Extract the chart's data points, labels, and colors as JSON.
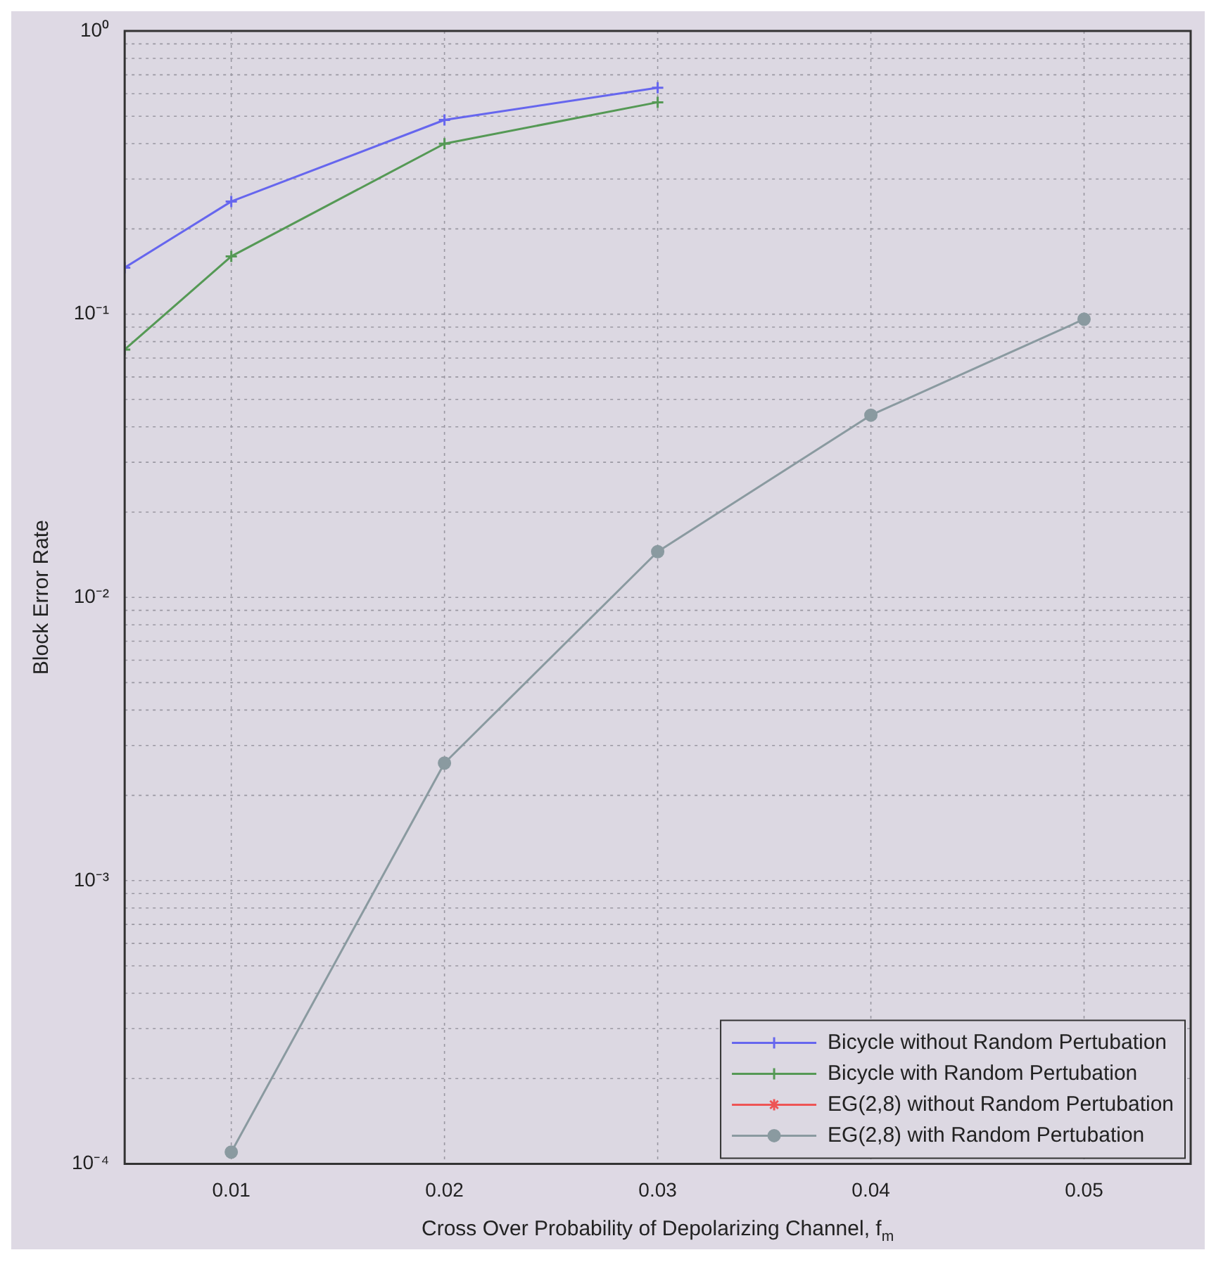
{
  "chart_data": {
    "type": "line",
    "xlabel": "Cross Over Probability of Depolarizing Channel, f$_{m}$",
    "ylabel": "Block Error Rate",
    "xlim": [
      0.005,
      0.055
    ],
    "xticks": [
      0.01,
      0.02,
      0.03,
      0.04,
      0.05
    ],
    "ylim": [
      0.0001,
      1
    ],
    "yticks": [
      {
        "value": 0.0001,
        "label": "10⁻⁴"
      },
      {
        "value": 0.001,
        "label": "10⁻³"
      },
      {
        "value": 0.01,
        "label": "10⁻²"
      },
      {
        "value": 0.1,
        "label": "10⁻¹"
      },
      {
        "value": 1,
        "label": "10⁰"
      }
    ],
    "log": "y",
    "grid": true,
    "legend": "bottom right",
    "line_style": "solid",
    "series": [
      {
        "name": "Bicycle without Random Pertubation",
        "color": "#6666ee",
        "marker": "cross",
        "x": [
          0.005,
          0.01,
          0.02,
          0.03
        ],
        "values": [
          0.146,
          0.25,
          0.485,
          0.63
        ]
      },
      {
        "name": "Bicycle with Random Pertubation",
        "color": "#559955",
        "marker": "cross",
        "x": [
          0.005,
          0.01,
          0.02,
          0.03
        ],
        "values": [
          0.075,
          0.16,
          0.4,
          0.56
        ]
      },
      {
        "name": "EG(2,8) without Random Pertubation",
        "color": "#ee5555",
        "marker": "star"
      },
      {
        "name": "EG(2,8) with Random Pertubation",
        "color": "#8a9aa0",
        "marker": "circle",
        "x": [
          0.01,
          0.02,
          0.03,
          0.04,
          0.05
        ],
        "values": [
          0.00011,
          0.0026,
          0.0145,
          0.044,
          0.096
        ]
      }
    ]
  }
}
